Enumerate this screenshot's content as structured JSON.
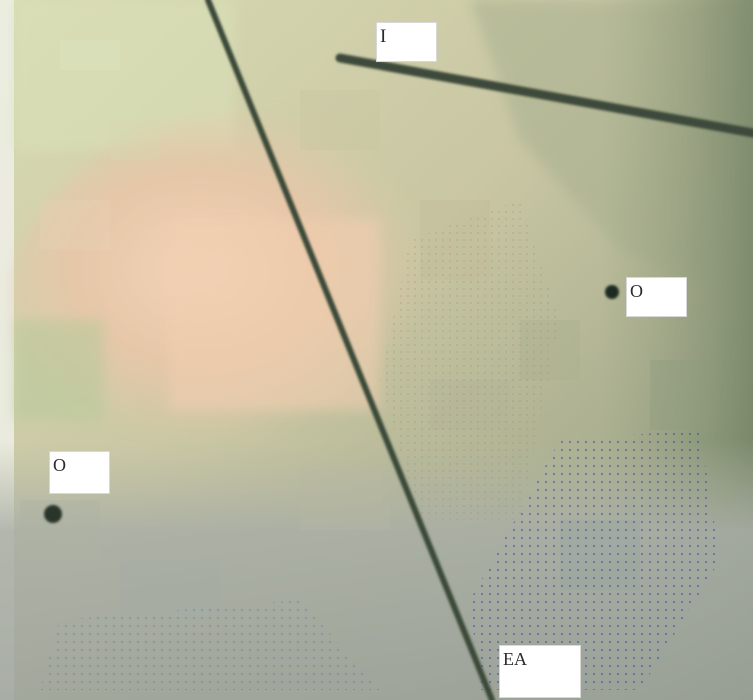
{
  "image": {
    "kind": "photo-like illustration with overlaid labels",
    "palette": {
      "peach": "#efcfb0",
      "sage": "#b6bb98",
      "olive": "#8f9a7a",
      "grey_blue": "#a5aab0",
      "dark_line": "#3b4a3b",
      "dot_blue": "#2a3fb0"
    }
  },
  "labels": {
    "top": "I",
    "right": "O",
    "left": "O",
    "bottom": "EA"
  }
}
